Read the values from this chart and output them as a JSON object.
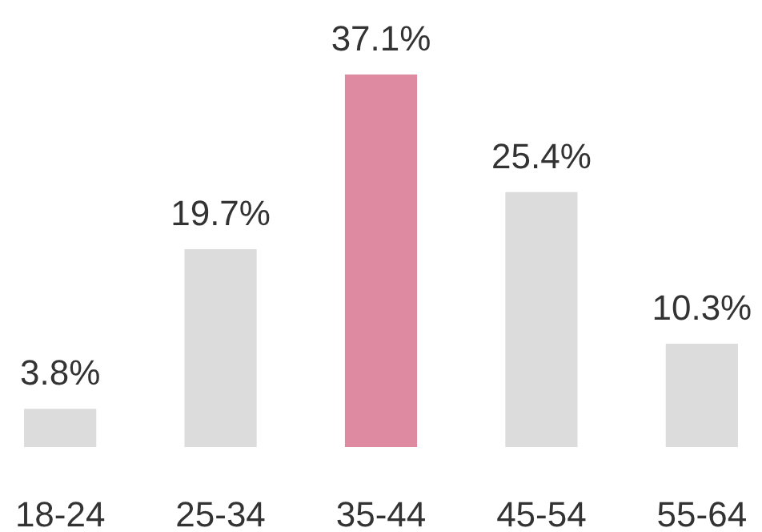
{
  "chart_data": {
    "type": "bar",
    "categories": [
      "18-24",
      "25-34",
      "35-44",
      "45-54",
      "55-64"
    ],
    "values": [
      3.8,
      19.7,
      37.1,
      25.4,
      10.3
    ],
    "colors": [
      "#dcdcdc",
      "#dcdcdc",
      "#de8aa0",
      "#dcdcdc",
      "#dcdcdc"
    ],
    "value_labels": [
      "3.8%",
      "19.7%",
      "37.1%",
      "25.4%",
      "10.3%"
    ],
    "grid": false
  }
}
